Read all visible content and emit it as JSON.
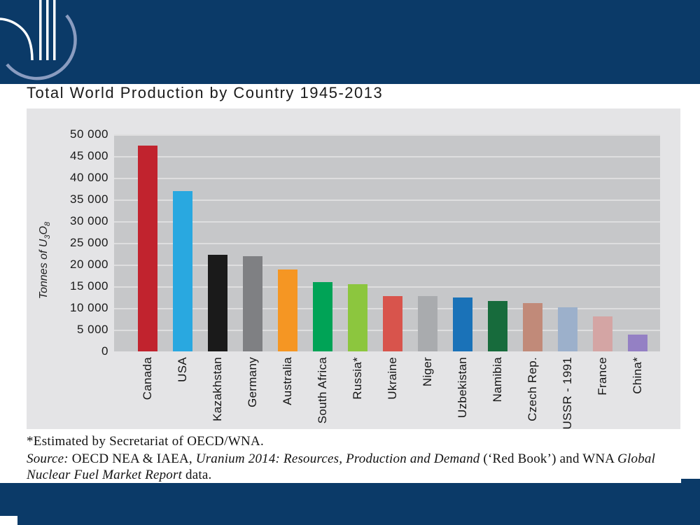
{
  "title": "Total World Production by Country 1945-2013",
  "theme": {
    "navy": "#0b3a68",
    "chart_background": "#e4e4e6",
    "plot_background": "#c6c7c9",
    "gridline": "#dededf",
    "logo_arc": "#8a9cc0"
  },
  "chart_data": {
    "type": "bar",
    "title": "Total World Production by Country 1945-2013",
    "xlabel": "",
    "ylabel": "Tonnes of U3O8",
    "ylabel_parts": [
      "Tonnes of U",
      "3",
      "O",
      "8"
    ],
    "ylim": [
      0,
      50000
    ],
    "grid": true,
    "legend_position": "none",
    "categories": [
      "Canada",
      "USA",
      "Kazakhstan",
      "Germany",
      "Australia",
      "South Africa",
      "Russia*",
      "Ukraine",
      "Niger",
      "Uzbekistan",
      "Namibia",
      "Czech Rep.",
      "USSR - 1991",
      "France",
      "China*"
    ],
    "values": [
      47500,
      37000,
      22200,
      21900,
      18900,
      15900,
      15500,
      12800,
      12700,
      12400,
      11600,
      11100,
      10200,
      8000,
      3800
    ],
    "colors": [
      "#c1232e",
      "#29a8e0",
      "#1a1a1a",
      "#7f8083",
      "#f59623",
      "#00a356",
      "#8cc63e",
      "#d8544c",
      "#a9abae",
      "#1a72b8",
      "#176b3c",
      "#c18a79",
      "#9cb0cb",
      "#d4a5a4",
      "#9480c4"
    ],
    "yticks": [
      {
        "value": 50000,
        "label": "50 000"
      },
      {
        "value": 45000,
        "label": "45 000"
      },
      {
        "value": 40000,
        "label": "40 000"
      },
      {
        "value": 35000,
        "label": "35 000"
      },
      {
        "value": 30000,
        "label": "30 000"
      },
      {
        "value": 25000,
        "label": "25 000"
      },
      {
        "value": 20000,
        "label": "20 000"
      },
      {
        "value": 15000,
        "label": "15 000"
      },
      {
        "value": 10000,
        "label": "10 000"
      },
      {
        "value": 5000,
        "label": "5 000"
      },
      {
        "value": 0,
        "label": "0"
      }
    ]
  },
  "footnotes": {
    "estimate": "*Estimated by Secretariat of OECD/WNA.",
    "source_segments": [
      {
        "text": "Source:",
        "italic": true
      },
      {
        "text": " OECD NEA & IAEA, ",
        "italic": false
      },
      {
        "text": "Uranium 2014: Resources, Production and Demand",
        "italic": true
      },
      {
        "text": " (‘Red Book’) and WNA ",
        "italic": false
      },
      {
        "text": "Global Nuclear Fuel Market Report",
        "italic": true
      },
      {
        "text": " data.",
        "italic": false
      }
    ]
  }
}
